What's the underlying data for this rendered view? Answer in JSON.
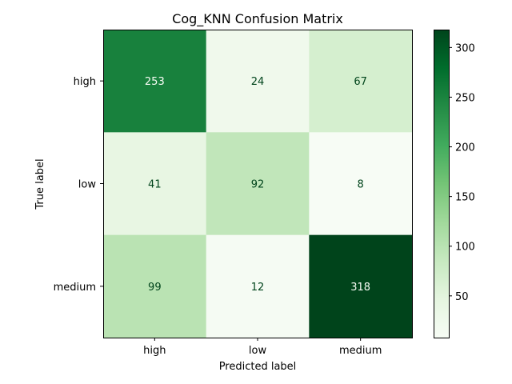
{
  "chart_data": {
    "type": "heatmap",
    "title": "Cog_KNN Confusion Matrix",
    "xlabel": "Predicted label",
    "ylabel": "True label",
    "x_categories": [
      "high",
      "low",
      "medium"
    ],
    "y_categories": [
      "high",
      "low",
      "medium"
    ],
    "values": [
      [
        253,
        24,
        67
      ],
      [
        41,
        92,
        8
      ],
      [
        99,
        12,
        318
      ]
    ],
    "colormap": "Greens",
    "vmin": 8,
    "vmax": 318,
    "colorbar_ticks": [
      "50",
      "100",
      "150",
      "200",
      "250",
      "300"
    ],
    "colorbar_tick_values": [
      50,
      100,
      150,
      200,
      250,
      300
    ],
    "light_text_color": "#f7fcf5",
    "dark_text_color": "#00441b"
  }
}
